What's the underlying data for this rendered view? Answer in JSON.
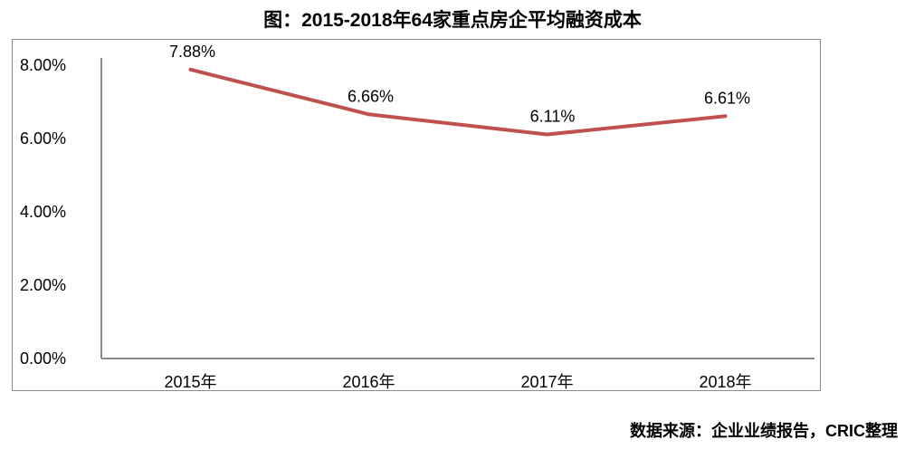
{
  "title": "图：2015-2018年64家重点房企平均融资成本",
  "source": "数据来源：企业业绩报告，CRIC整理",
  "colors": {
    "line": "#c0504d",
    "axis": "#8a8a8a",
    "frame": "#8a8a8a"
  },
  "chart_data": {
    "type": "line",
    "title": "图：2015-2018年64家重点房企平均融资成本",
    "categories": [
      "2015年",
      "2016年",
      "2017年",
      "2018年"
    ],
    "series": [
      {
        "values": [
          7.88,
          6.66,
          6.11,
          6.61
        ],
        "labels": [
          "7.88%",
          "6.66%",
          "6.11%",
          "6.61%"
        ]
      }
    ],
    "y_ticks": [
      "0.00%",
      "2.00%",
      "4.00%",
      "6.00%",
      "8.00%"
    ],
    "ylim": [
      0,
      8
    ],
    "grid": false,
    "legend": "none"
  }
}
